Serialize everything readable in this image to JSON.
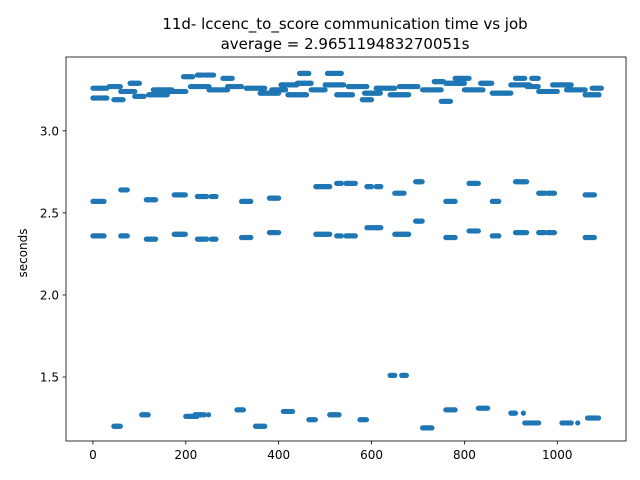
{
  "chart_data": {
    "type": "scatter",
    "title": "11d- lccenc_to_score communication time vs job",
    "subtitle": "average = 2.965119483270051s",
    "xlabel": "",
    "ylabel": "seconds",
    "xlim": [
      -58,
      1148
    ],
    "ylim": [
      1.11,
      3.45
    ],
    "xticks": [
      0,
      200,
      400,
      600,
      800,
      1000
    ],
    "yticks": [
      1.5,
      2.0,
      2.5,
      3.0
    ],
    "xtick_labels": [
      "0",
      "200",
      "400",
      "600",
      "800",
      "1000"
    ],
    "ytick_labels": [
      "1.5",
      "2.0",
      "2.5",
      "3.0"
    ],
    "grid": false,
    "marker_color": "#1f77b4",
    "segments": [
      [
        0,
        30,
        3.2
      ],
      [
        0,
        30,
        3.26
      ],
      [
        35,
        60,
        3.27
      ],
      [
        45,
        65,
        3.19
      ],
      [
        60,
        90,
        3.24
      ],
      [
        80,
        100,
        3.29
      ],
      [
        90,
        110,
        3.21
      ],
      [
        120,
        160,
        3.22
      ],
      [
        130,
        170,
        3.25
      ],
      [
        160,
        200,
        3.24
      ],
      [
        195,
        215,
        3.33
      ],
      [
        210,
        250,
        3.27
      ],
      [
        225,
        235,
        3.34
      ],
      [
        240,
        260,
        3.34
      ],
      [
        250,
        290,
        3.25
      ],
      [
        280,
        300,
        3.32
      ],
      [
        290,
        320,
        3.27
      ],
      [
        330,
        370,
        3.26
      ],
      [
        360,
        400,
        3.23
      ],
      [
        385,
        415,
        3.25
      ],
      [
        405,
        440,
        3.28
      ],
      [
        420,
        460,
        3.22
      ],
      [
        440,
        470,
        3.29
      ],
      [
        445,
        465,
        3.35
      ],
      [
        470,
        500,
        3.25
      ],
      [
        500,
        540,
        3.28
      ],
      [
        505,
        535,
        3.35
      ],
      [
        525,
        560,
        3.22
      ],
      [
        550,
        590,
        3.27
      ],
      [
        580,
        600,
        3.19
      ],
      [
        585,
        620,
        3.23
      ],
      [
        610,
        650,
        3.26
      ],
      [
        640,
        680,
        3.22
      ],
      [
        660,
        700,
        3.27
      ],
      [
        710,
        750,
        3.25
      ],
      [
        735,
        755,
        3.3
      ],
      [
        750,
        770,
        3.18
      ],
      [
        760,
        800,
        3.29
      ],
      [
        780,
        810,
        3.32
      ],
      [
        800,
        840,
        3.25
      ],
      [
        835,
        860,
        3.29
      ],
      [
        860,
        900,
        3.23
      ],
      [
        900,
        940,
        3.28
      ],
      [
        910,
        930,
        3.32
      ],
      [
        935,
        960,
        3.27
      ],
      [
        945,
        960,
        3.32
      ],
      [
        960,
        1000,
        3.24
      ],
      [
        990,
        1030,
        3.28
      ],
      [
        1020,
        1060,
        3.25
      ],
      [
        1060,
        1090,
        3.22
      ],
      [
        1075,
        1095,
        3.26
      ],
      [
        0,
        25,
        2.36
      ],
      [
        0,
        25,
        2.57
      ],
      [
        60,
        75,
        2.64
      ],
      [
        60,
        75,
        2.36
      ],
      [
        115,
        135,
        2.58
      ],
      [
        115,
        135,
        2.34
      ],
      [
        175,
        200,
        2.61
      ],
      [
        175,
        200,
        2.37
      ],
      [
        225,
        245,
        2.6
      ],
      [
        225,
        245,
        2.34
      ],
      [
        255,
        265,
        2.6
      ],
      [
        255,
        265,
        2.34
      ],
      [
        320,
        340,
        2.57
      ],
      [
        320,
        340,
        2.35
      ],
      [
        380,
        400,
        2.59
      ],
      [
        380,
        400,
        2.38
      ],
      [
        480,
        510,
        2.66
      ],
      [
        480,
        510,
        2.37
      ],
      [
        525,
        535,
        2.68
      ],
      [
        525,
        535,
        2.36
      ],
      [
        545,
        565,
        2.68
      ],
      [
        545,
        565,
        2.36
      ],
      [
        590,
        600,
        2.66
      ],
      [
        590,
        610,
        2.41
      ],
      [
        610,
        620,
        2.66
      ],
      [
        610,
        620,
        2.41
      ],
      [
        650,
        670,
        2.62
      ],
      [
        650,
        680,
        2.37
      ],
      [
        695,
        710,
        2.69
      ],
      [
        695,
        710,
        2.45
      ],
      [
        760,
        780,
        2.57
      ],
      [
        760,
        780,
        2.35
      ],
      [
        810,
        830,
        2.68
      ],
      [
        810,
        830,
        2.39
      ],
      [
        860,
        875,
        2.57
      ],
      [
        860,
        875,
        2.36
      ],
      [
        910,
        935,
        2.69
      ],
      [
        910,
        935,
        2.38
      ],
      [
        960,
        975,
        2.62
      ],
      [
        960,
        975,
        2.38
      ],
      [
        980,
        995,
        2.62
      ],
      [
        980,
        995,
        2.38
      ],
      [
        1060,
        1080,
        2.61
      ],
      [
        1060,
        1080,
        2.35
      ],
      [
        640,
        650,
        1.51
      ],
      [
        665,
        675,
        1.51
      ],
      [
        45,
        60,
        1.2
      ],
      [
        105,
        120,
        1.27
      ],
      [
        200,
        225,
        1.26
      ],
      [
        220,
        240,
        1.27
      ],
      [
        310,
        325,
        1.3
      ],
      [
        350,
        370,
        1.2
      ],
      [
        410,
        430,
        1.29
      ],
      [
        465,
        480,
        1.24
      ],
      [
        510,
        530,
        1.27
      ],
      [
        575,
        590,
        1.24
      ],
      [
        710,
        730,
        1.19
      ],
      [
        760,
        780,
        1.3
      ],
      [
        830,
        850,
        1.31
      ],
      [
        900,
        910,
        1.28
      ],
      [
        930,
        960,
        1.22
      ],
      [
        1010,
        1030,
        1.22
      ],
      [
        1065,
        1090,
        1.25
      ]
    ],
    "singles": [
      [
        249,
        1.27
      ],
      [
        927,
        1.28
      ],
      [
        1044,
        1.22
      ]
    ]
  }
}
